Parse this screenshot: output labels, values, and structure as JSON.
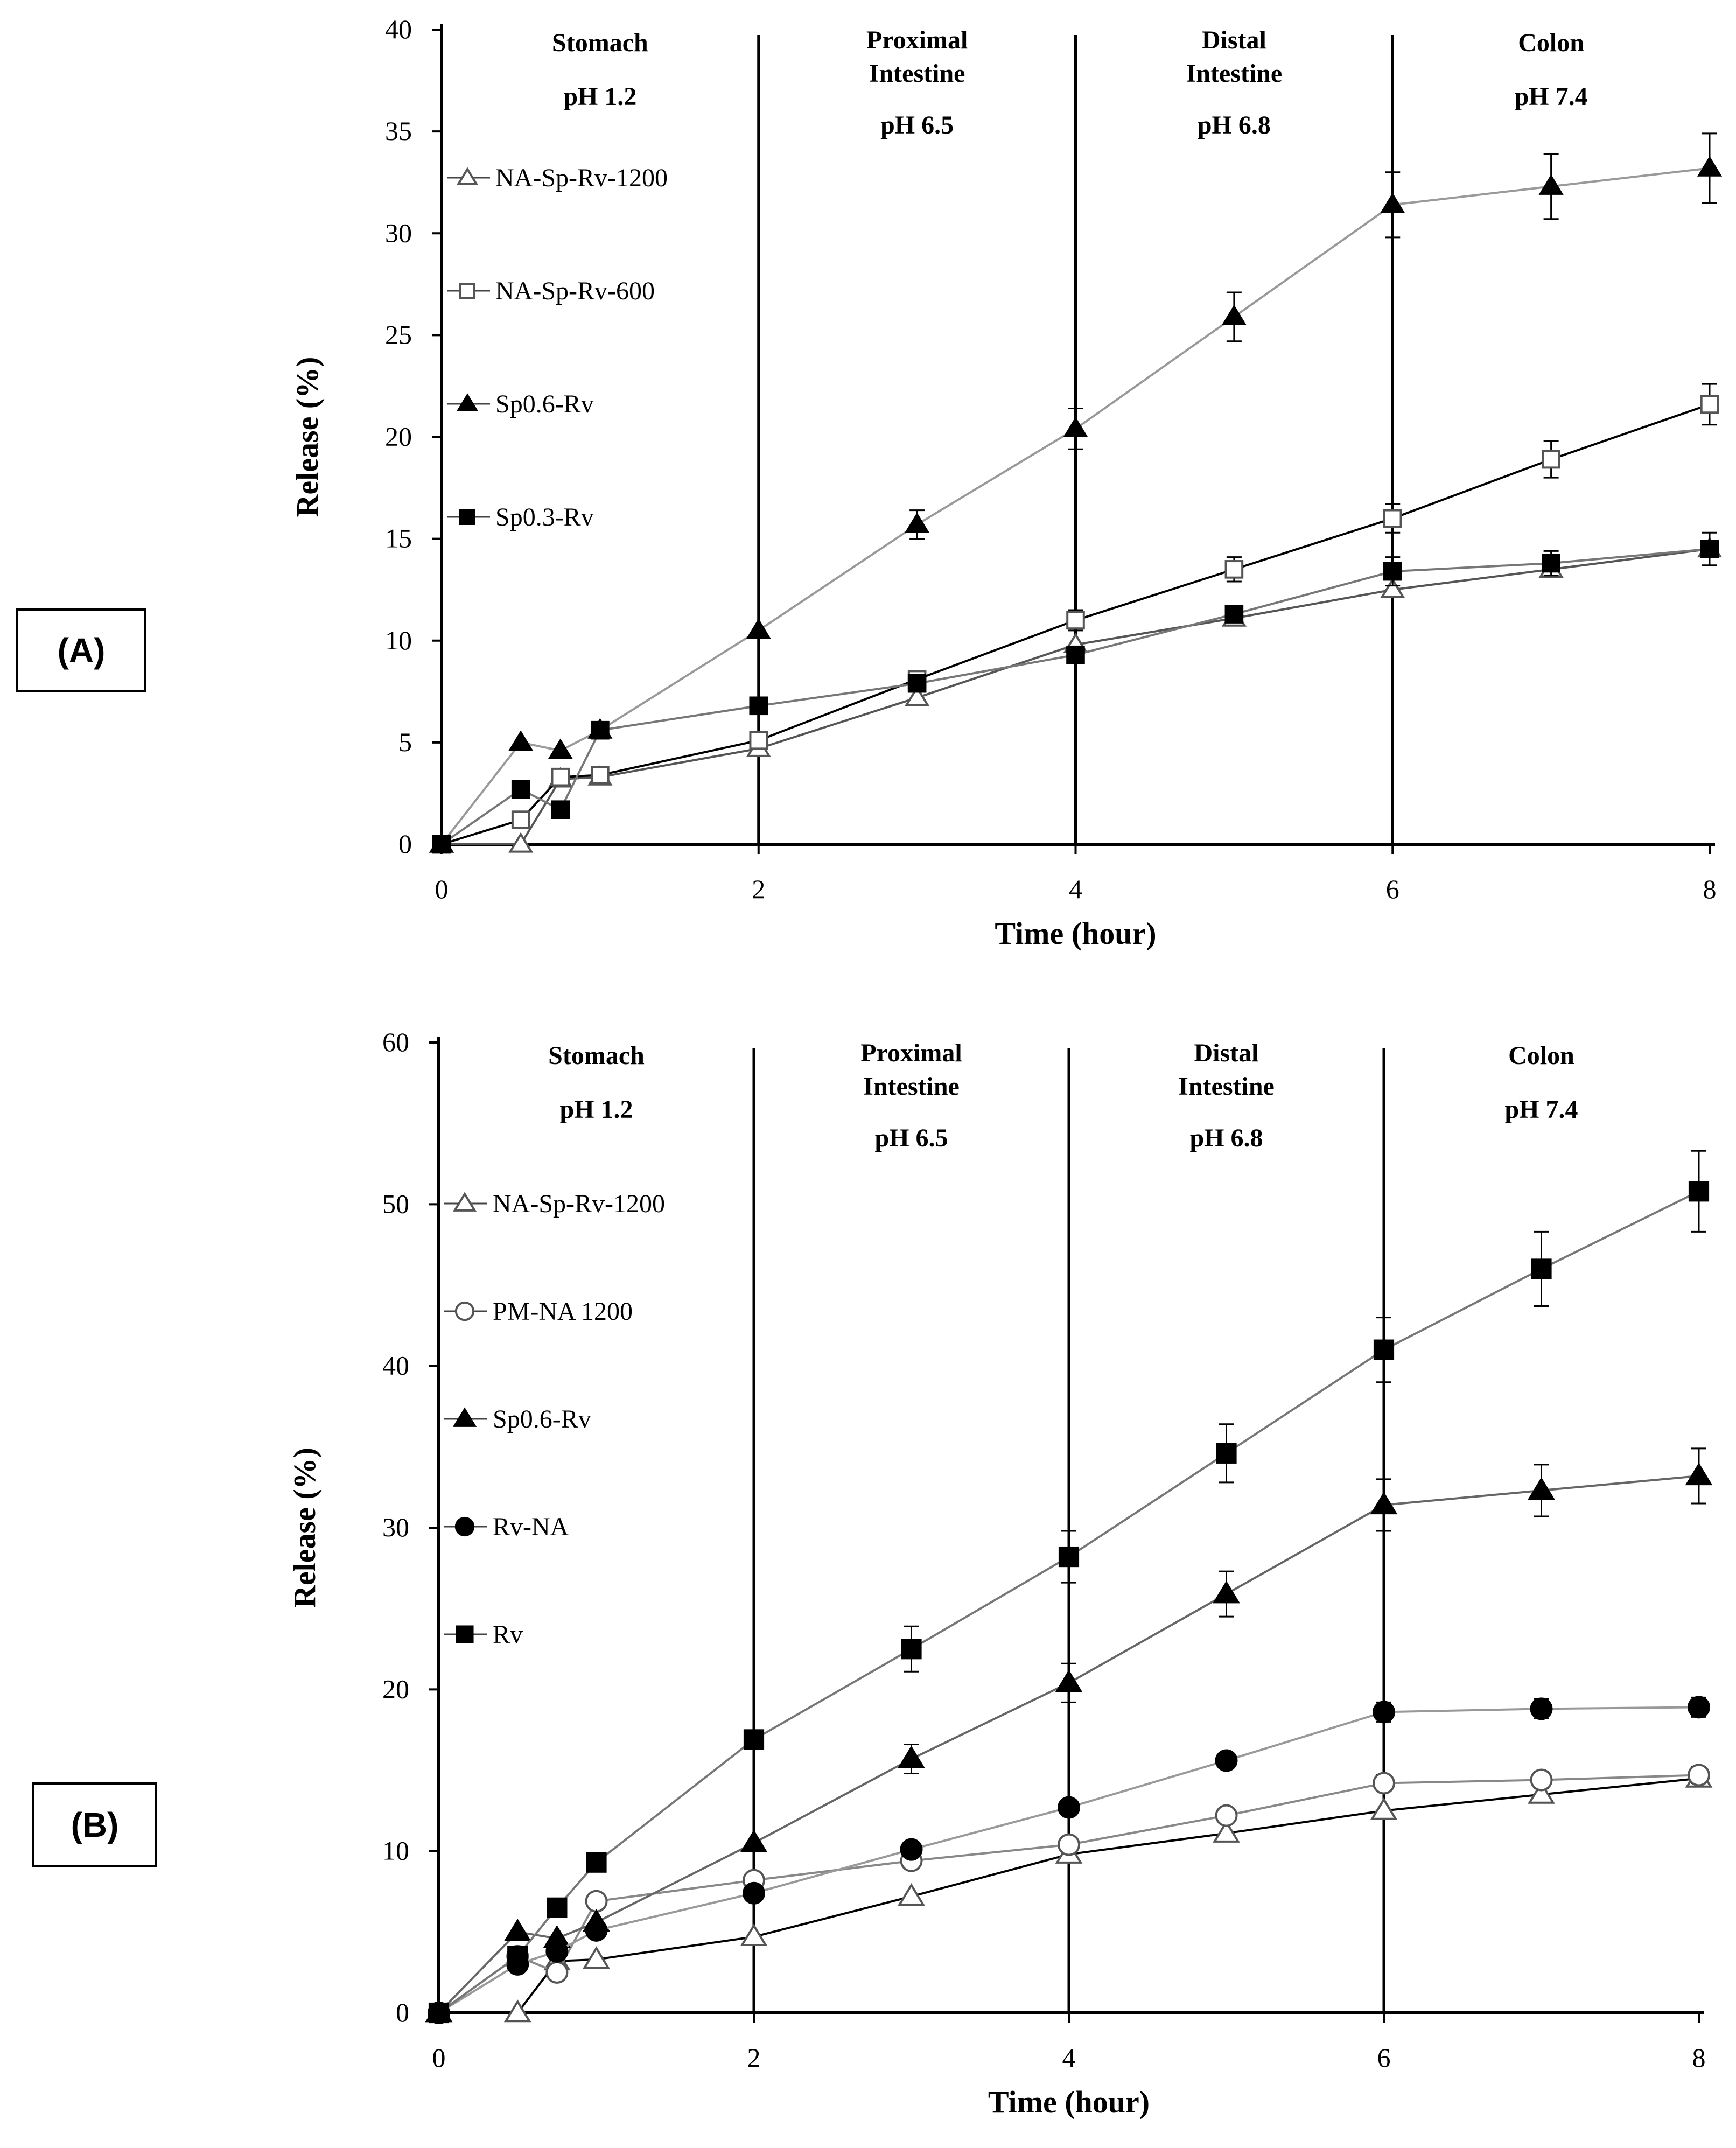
{
  "panels": {
    "a": {
      "label": "(A)"
    },
    "b": {
      "label": "(B)"
    }
  },
  "chart_data": [
    {
      "type": "line",
      "panel": "A",
      "xlabel": "Time (hour)",
      "ylabel": "Release (%)",
      "xlim": [
        0,
        8
      ],
      "ylim": [
        0,
        40
      ],
      "xticks": [
        0,
        2,
        4,
        6,
        8
      ],
      "yticks": [
        0,
        5,
        10,
        15,
        20,
        25,
        30,
        35,
        40
      ],
      "region_lines": [
        2,
        4,
        6
      ],
      "regions": [
        {
          "x": 1,
          "lines": [
            "Stomach",
            "pH  1.2"
          ]
        },
        {
          "x": 3,
          "lines": [
            "Proximal",
            "Intestine",
            "pH  6.5"
          ]
        },
        {
          "x": 5,
          "lines": [
            "Distal",
            "Intestine",
            "pH  6.8"
          ]
        },
        {
          "x": 7,
          "lines": [
            "Colon",
            "pH  7.4"
          ]
        }
      ],
      "legend_position": "top-left",
      "series": [
        {
          "name": "NA-Sp-Rv-1200",
          "marker": "triangle-open",
          "line_color": "#555555",
          "x": [
            0,
            0.5,
            0.75,
            1,
            2,
            3,
            4,
            5,
            6,
            7,
            8
          ],
          "y": [
            0,
            0,
            3.2,
            3.3,
            4.7,
            7.2,
            9.8,
            11.1,
            12.5,
            13.5,
            14.5
          ],
          "err": [
            0,
            0,
            0,
            0,
            0,
            0,
            0,
            0,
            0,
            0,
            0
          ]
        },
        {
          "name": "NA-Sp-Rv-600",
          "marker": "square-open",
          "line_color": "#000000",
          "x": [
            0,
            0.5,
            0.75,
            1,
            2,
            3,
            4,
            5,
            6,
            7,
            8
          ],
          "y": [
            0,
            1.2,
            3.3,
            3.4,
            5.1,
            8.1,
            11.0,
            13.5,
            16.0,
            18.9,
            21.6
          ],
          "err": [
            0,
            0,
            0,
            0,
            0,
            0.4,
            0.5,
            0.6,
            0.7,
            0.9,
            1.0
          ]
        },
        {
          "name": "Sp0.6-Rv",
          "marker": "triangle-filled",
          "line_color": "#999999",
          "x": [
            0,
            0.5,
            0.75,
            1,
            2,
            3,
            4,
            5,
            6,
            7,
            8
          ],
          "y": [
            0,
            5.0,
            4.6,
            5.6,
            10.5,
            15.7,
            20.4,
            25.9,
            31.4,
            32.3,
            33.2
          ],
          "err": [
            0,
            0,
            0,
            0,
            0,
            0.7,
            1.0,
            1.2,
            1.6,
            1.6,
            1.7
          ]
        },
        {
          "name": "Sp0.3-Rv",
          "marker": "square-filled",
          "line_color": "#777777",
          "x": [
            0,
            0.5,
            0.75,
            1,
            2,
            3,
            4,
            5,
            6,
            7,
            8
          ],
          "y": [
            0,
            2.7,
            1.7,
            5.6,
            6.8,
            7.9,
            9.3,
            11.3,
            13.4,
            13.8,
            14.5
          ],
          "err": [
            0,
            0,
            0,
            0,
            0,
            0,
            0.4,
            0.4,
            0.7,
            0.6,
            0.8
          ]
        }
      ]
    },
    {
      "type": "line",
      "panel": "B",
      "xlabel": "Time (hour)",
      "ylabel": "Release (%)",
      "xlim": [
        0,
        8
      ],
      "ylim": [
        0,
        60
      ],
      "xticks": [
        0,
        2,
        4,
        6,
        8
      ],
      "yticks": [
        0,
        10,
        20,
        30,
        40,
        50,
        60
      ],
      "region_lines": [
        2,
        4,
        6
      ],
      "regions": [
        {
          "x": 1,
          "lines": [
            "Stomach",
            "pH  1.2"
          ]
        },
        {
          "x": 3,
          "lines": [
            "Proximal",
            "Intestine",
            "pH  6.5"
          ]
        },
        {
          "x": 5,
          "lines": [
            "Distal",
            "Intestine",
            "pH  6.8"
          ]
        },
        {
          "x": 7,
          "lines": [
            "Colon",
            "pH  7.4"
          ]
        }
      ],
      "legend_position": "top-left",
      "series": [
        {
          "name": "NA-Sp-Rv-1200",
          "marker": "triangle-open",
          "line_color": "#000000",
          "x": [
            0,
            0.5,
            0.75,
            1,
            2,
            3,
            4,
            5,
            6,
            7,
            8
          ],
          "y": [
            0,
            0,
            3.2,
            3.3,
            4.7,
            7.2,
            9.8,
            11.1,
            12.5,
            13.5,
            14.5
          ],
          "err": [
            0,
            0,
            0,
            0,
            0,
            0,
            0,
            0,
            0,
            0,
            0
          ]
        },
        {
          "name": "PM-NA 1200",
          "marker": "circle-open",
          "line_color": "#888888",
          "x": [
            0,
            0.5,
            0.75,
            1,
            2,
            3,
            4,
            5,
            6,
            7,
            8
          ],
          "y": [
            0,
            3.5,
            2.5,
            6.9,
            8.2,
            9.4,
            10.4,
            12.2,
            14.2,
            14.4,
            14.7
          ],
          "err": [
            0,
            0,
            0,
            0,
            0,
            0,
            0.4,
            0.4,
            0.5,
            0.5,
            0.5
          ]
        },
        {
          "name": "Sp0.6-Rv",
          "marker": "triangle-filled",
          "line_color": "#666666",
          "x": [
            0,
            0.5,
            0.75,
            1,
            2,
            3,
            4,
            5,
            6,
            7,
            8
          ],
          "y": [
            0,
            5.0,
            4.6,
            5.6,
            10.5,
            15.7,
            20.4,
            25.9,
            31.4,
            32.3,
            33.2
          ],
          "err": [
            0,
            0,
            0,
            0,
            0,
            0.9,
            1.2,
            1.4,
            1.6,
            1.6,
            1.7
          ]
        },
        {
          "name": "Rv-NA",
          "marker": "circle-filled",
          "line_color": "#999999",
          "x": [
            0,
            0.5,
            0.75,
            1,
            2,
            3,
            4,
            5,
            6,
            7,
            8
          ],
          "y": [
            0,
            3.0,
            3.8,
            5.1,
            7.4,
            10.1,
            12.7,
            15.6,
            18.6,
            18.8,
            18.9
          ],
          "err": [
            0,
            0,
            0,
            0,
            0,
            0,
            0.4,
            0.5,
            0.6,
            0.6,
            0.6
          ]
        },
        {
          "name": "Rv",
          "marker": "square-filled",
          "line_color": "#777777",
          "x": [
            0,
            0.5,
            0.75,
            1,
            2,
            3,
            4,
            5,
            6,
            7,
            8
          ],
          "y": [
            0,
            3.5,
            6.5,
            9.3,
            16.9,
            22.5,
            28.2,
            34.6,
            41.0,
            46.0,
            50.8
          ],
          "err": [
            0,
            0,
            0,
            0,
            0,
            1.4,
            1.6,
            1.8,
            2.0,
            2.3,
            2.5
          ]
        }
      ]
    }
  ]
}
